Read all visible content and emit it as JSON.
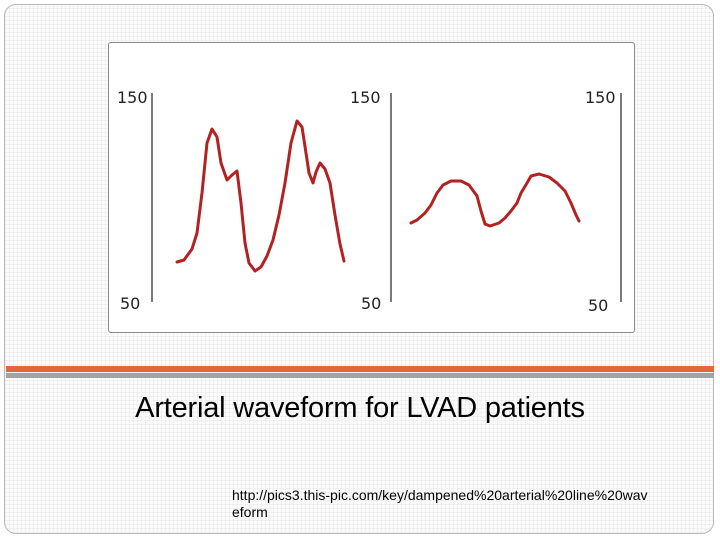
{
  "slide": {
    "title": "Arterial waveform for LVAD patients",
    "source_url": "http://pics3.this-pic.com/key/dampened%20arterial%20line%20waveform"
  },
  "figure": {
    "panels": [
      {
        "top_label": "150",
        "bottom_label": "50"
      },
      {
        "top_label": "150",
        "bottom_label": "50"
      },
      {
        "top_label": "150",
        "bottom_label": "50"
      }
    ],
    "waveform_color": "#b22222"
  },
  "theme": {
    "accent_orange": "#e2673a",
    "accent_gray": "#a3a3a3"
  }
}
